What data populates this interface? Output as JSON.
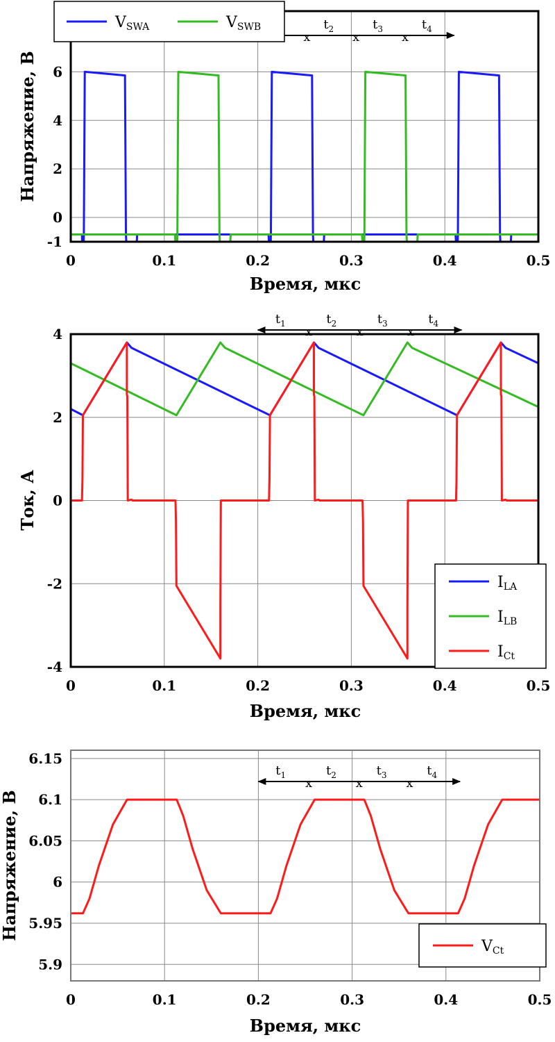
{
  "chart_data": [
    {
      "type": "line",
      "xlabel": "Время, мкс",
      "ylabel": "Напряжение, В",
      "xlim": [
        0,
        0.5
      ],
      "ylim": [
        -1,
        8.5
      ],
      "xticks": [
        0,
        0.1,
        0.2,
        0.3,
        0.4,
        0.5
      ],
      "xtick_labels": [
        "0",
        "0.1",
        "0.2",
        "0.3",
        "0.4",
        "0.5"
      ],
      "yticks": [
        -1,
        0,
        2,
        4,
        6
      ],
      "ytick_labels": [
        "-1",
        "0",
        "2",
        "4",
        "6"
      ],
      "grid": true,
      "legend_position": "top-left",
      "annotation": {
        "labels": [
          "t",
          "t",
          "t",
          "t"
        ],
        "subs": [
          "1",
          "2",
          "3",
          "4"
        ],
        "separator": "x",
        "x_from": 0.2,
        "x_to": 0.41,
        "y": 7.5
      },
      "series": [
        {
          "name": "V",
          "sub": "SWA",
          "color": "#1a1aff",
          "x": [
            0,
            0.012,
            0.0125,
            0.0135,
            0.014,
            0.015,
            0.058,
            0.059,
            0.06,
            0.0605,
            0.07,
            0.071,
            0.072,
            0.2115,
            0.2125,
            0.2135,
            0.214,
            0.215,
            0.258,
            0.259,
            0.26,
            0.2605,
            0.27,
            0.271,
            0.272,
            0.4115,
            0.4125,
            0.4135,
            0.414,
            0.415,
            0.458,
            0.459,
            0.46,
            0.4605,
            0.47,
            0.471,
            0.472,
            0.5
          ],
          "y": [
            -0.7,
            -0.7,
            -1.5,
            -1.5,
            -0.7,
            6.0,
            5.85,
            -0.7,
            -1.5,
            -1.5,
            -1.5,
            -0.7,
            -0.7,
            -0.7,
            -1.5,
            -1.5,
            -0.7,
            6.0,
            5.85,
            -0.7,
            -1.5,
            -1.5,
            -1.5,
            -0.7,
            -0.7,
            -0.7,
            -1.5,
            -1.5,
            -0.7,
            6.0,
            5.85,
            -0.7,
            -1.5,
            -1.5,
            -1.5,
            -0.7,
            -0.7,
            -0.7
          ]
        },
        {
          "name": "V",
          "sub": "SWB",
          "color": "#33bb22",
          "x": [
            0,
            0.1115,
            0.1125,
            0.1135,
            0.114,
            0.115,
            0.158,
            0.159,
            0.16,
            0.1605,
            0.17,
            0.171,
            0.172,
            0.3115,
            0.3125,
            0.3135,
            0.314,
            0.315,
            0.358,
            0.359,
            0.36,
            0.3605,
            0.37,
            0.371,
            0.372,
            0.5
          ],
          "y": [
            -0.7,
            -0.7,
            -1.5,
            -1.5,
            -0.7,
            6.0,
            5.85,
            -0.7,
            -1.5,
            -1.5,
            -1.5,
            -0.7,
            -0.7,
            -0.7,
            -1.5,
            -1.5,
            -0.7,
            6.0,
            5.85,
            -0.7,
            -1.5,
            -1.5,
            -1.5,
            -0.7,
            -0.7,
            -0.7
          ]
        }
      ]
    },
    {
      "type": "line",
      "xlabel": "Время, мкс",
      "ylabel": "Ток, А",
      "xlim": [
        0,
        0.5
      ],
      "ylim": [
        -4,
        4
      ],
      "xticks": [
        0,
        0.1,
        0.2,
        0.3,
        0.4,
        0.5
      ],
      "xtick_labels": [
        "0",
        "0.1",
        "0.2",
        "0.3",
        "0.4",
        "0.5"
      ],
      "yticks": [
        -4,
        -2,
        0,
        2,
        4
      ],
      "ytick_labels": [
        "-4",
        "-2",
        "0",
        "2",
        "4"
      ],
      "grid": true,
      "legend_position": "bottom-right",
      "annotation": {
        "labels": [
          "t",
          "t",
          "t",
          "t"
        ],
        "subs": [
          "1",
          "2",
          "3",
          "4"
        ],
        "separator": "x",
        "x_from": 0.2,
        "x_to": 0.418,
        "y": 4.1
      },
      "series": [
        {
          "name": "I",
          "sub": "LA",
          "color": "#1a1aff",
          "x": [
            0,
            0.013,
            0.06,
            0.065,
            0.213,
            0.26,
            0.265,
            0.413,
            0.46,
            0.465,
            0.5
          ],
          "y": [
            2.2,
            2.05,
            3.8,
            3.67,
            2.05,
            3.8,
            3.67,
            2.05,
            3.8,
            3.67,
            3.3
          ]
        },
        {
          "name": "I",
          "sub": "LB",
          "color": "#33bb22",
          "x": [
            0,
            0.113,
            0.16,
            0.165,
            0.313,
            0.36,
            0.365,
            0.5
          ],
          "y": [
            3.3,
            2.05,
            3.8,
            3.67,
            2.05,
            3.8,
            3.67,
            2.25
          ]
        },
        {
          "name": "I",
          "sub": "Ct",
          "color": "#ff1a1a",
          "x": [
            0,
            0.012,
            0.0125,
            0.013,
            0.06,
            0.06,
            0.0605,
            0.061,
            0.065,
            0.066,
            0.112,
            0.1125,
            0.113,
            0.16,
            0.16,
            0.1605,
            0.212,
            0.2125,
            0.213,
            0.26,
            0.26,
            0.2605,
            0.261,
            0.265,
            0.266,
            0.312,
            0.3125,
            0.313,
            0.36,
            0.36,
            0.3605,
            0.412,
            0.4125,
            0.413,
            0.46,
            0.46,
            0.4605,
            0.461,
            0.465,
            0.466,
            0.5
          ],
          "y": [
            0,
            0,
            0.5,
            2.05,
            3.8,
            2.55,
            2.5,
            0,
            0.02,
            0,
            0,
            -0.5,
            -2.05,
            -3.8,
            -2.55,
            0,
            0,
            0.5,
            2.05,
            3.8,
            2.55,
            2.5,
            0,
            0.02,
            0,
            0,
            -0.5,
            -2.05,
            -3.8,
            -2.55,
            0,
            0,
            0.5,
            2.05,
            3.8,
            2.55,
            2.5,
            0,
            0.02,
            0,
            0
          ]
        }
      ]
    },
    {
      "type": "line",
      "xlabel": "Время, мкс",
      "ylabel": "Напряжение, В",
      "xlim": [
        0,
        0.5
      ],
      "ylim": [
        5.88,
        6.16
      ],
      "xticks": [
        0,
        0.1,
        0.2,
        0.3,
        0.4,
        0.5
      ],
      "xtick_labels": [
        "0",
        "0.1",
        "0.2",
        "0.3",
        "0.4",
        "0.5"
      ],
      "yticks": [
        5.9,
        5.95,
        6,
        6.05,
        6.1,
        6.15
      ],
      "ytick_labels": [
        "5.9",
        "5.95",
        "6",
        "6.05",
        "6.1",
        "6.15"
      ],
      "grid": true,
      "legend_position": "bottom-right",
      "annotation": {
        "labels": [
          "t",
          "t",
          "t",
          "t"
        ],
        "subs": [
          "1",
          "2",
          "3",
          "4"
        ],
        "separator": "x",
        "x_from": 0.2,
        "x_to": 0.415,
        "y": 6.122
      },
      "series": [
        {
          "name": "V",
          "sub": "Ct",
          "color": "#ff1a1a",
          "x": [
            0,
            0.013,
            0.02,
            0.03,
            0.045,
            0.06,
            0.113,
            0.12,
            0.13,
            0.145,
            0.16,
            0.213,
            0.22,
            0.23,
            0.245,
            0.26,
            0.313,
            0.32,
            0.33,
            0.345,
            0.36,
            0.413,
            0.42,
            0.43,
            0.445,
            0.46,
            0.5
          ],
          "y": [
            5.962,
            5.962,
            5.98,
            6.02,
            6.07,
            6.1,
            6.1,
            6.08,
            6.04,
            5.99,
            5.962,
            5.962,
            5.98,
            6.02,
            6.07,
            6.1,
            6.1,
            6.08,
            6.04,
            5.99,
            5.962,
            5.962,
            5.98,
            6.02,
            6.07,
            6.1,
            6.1
          ]
        }
      ]
    }
  ]
}
